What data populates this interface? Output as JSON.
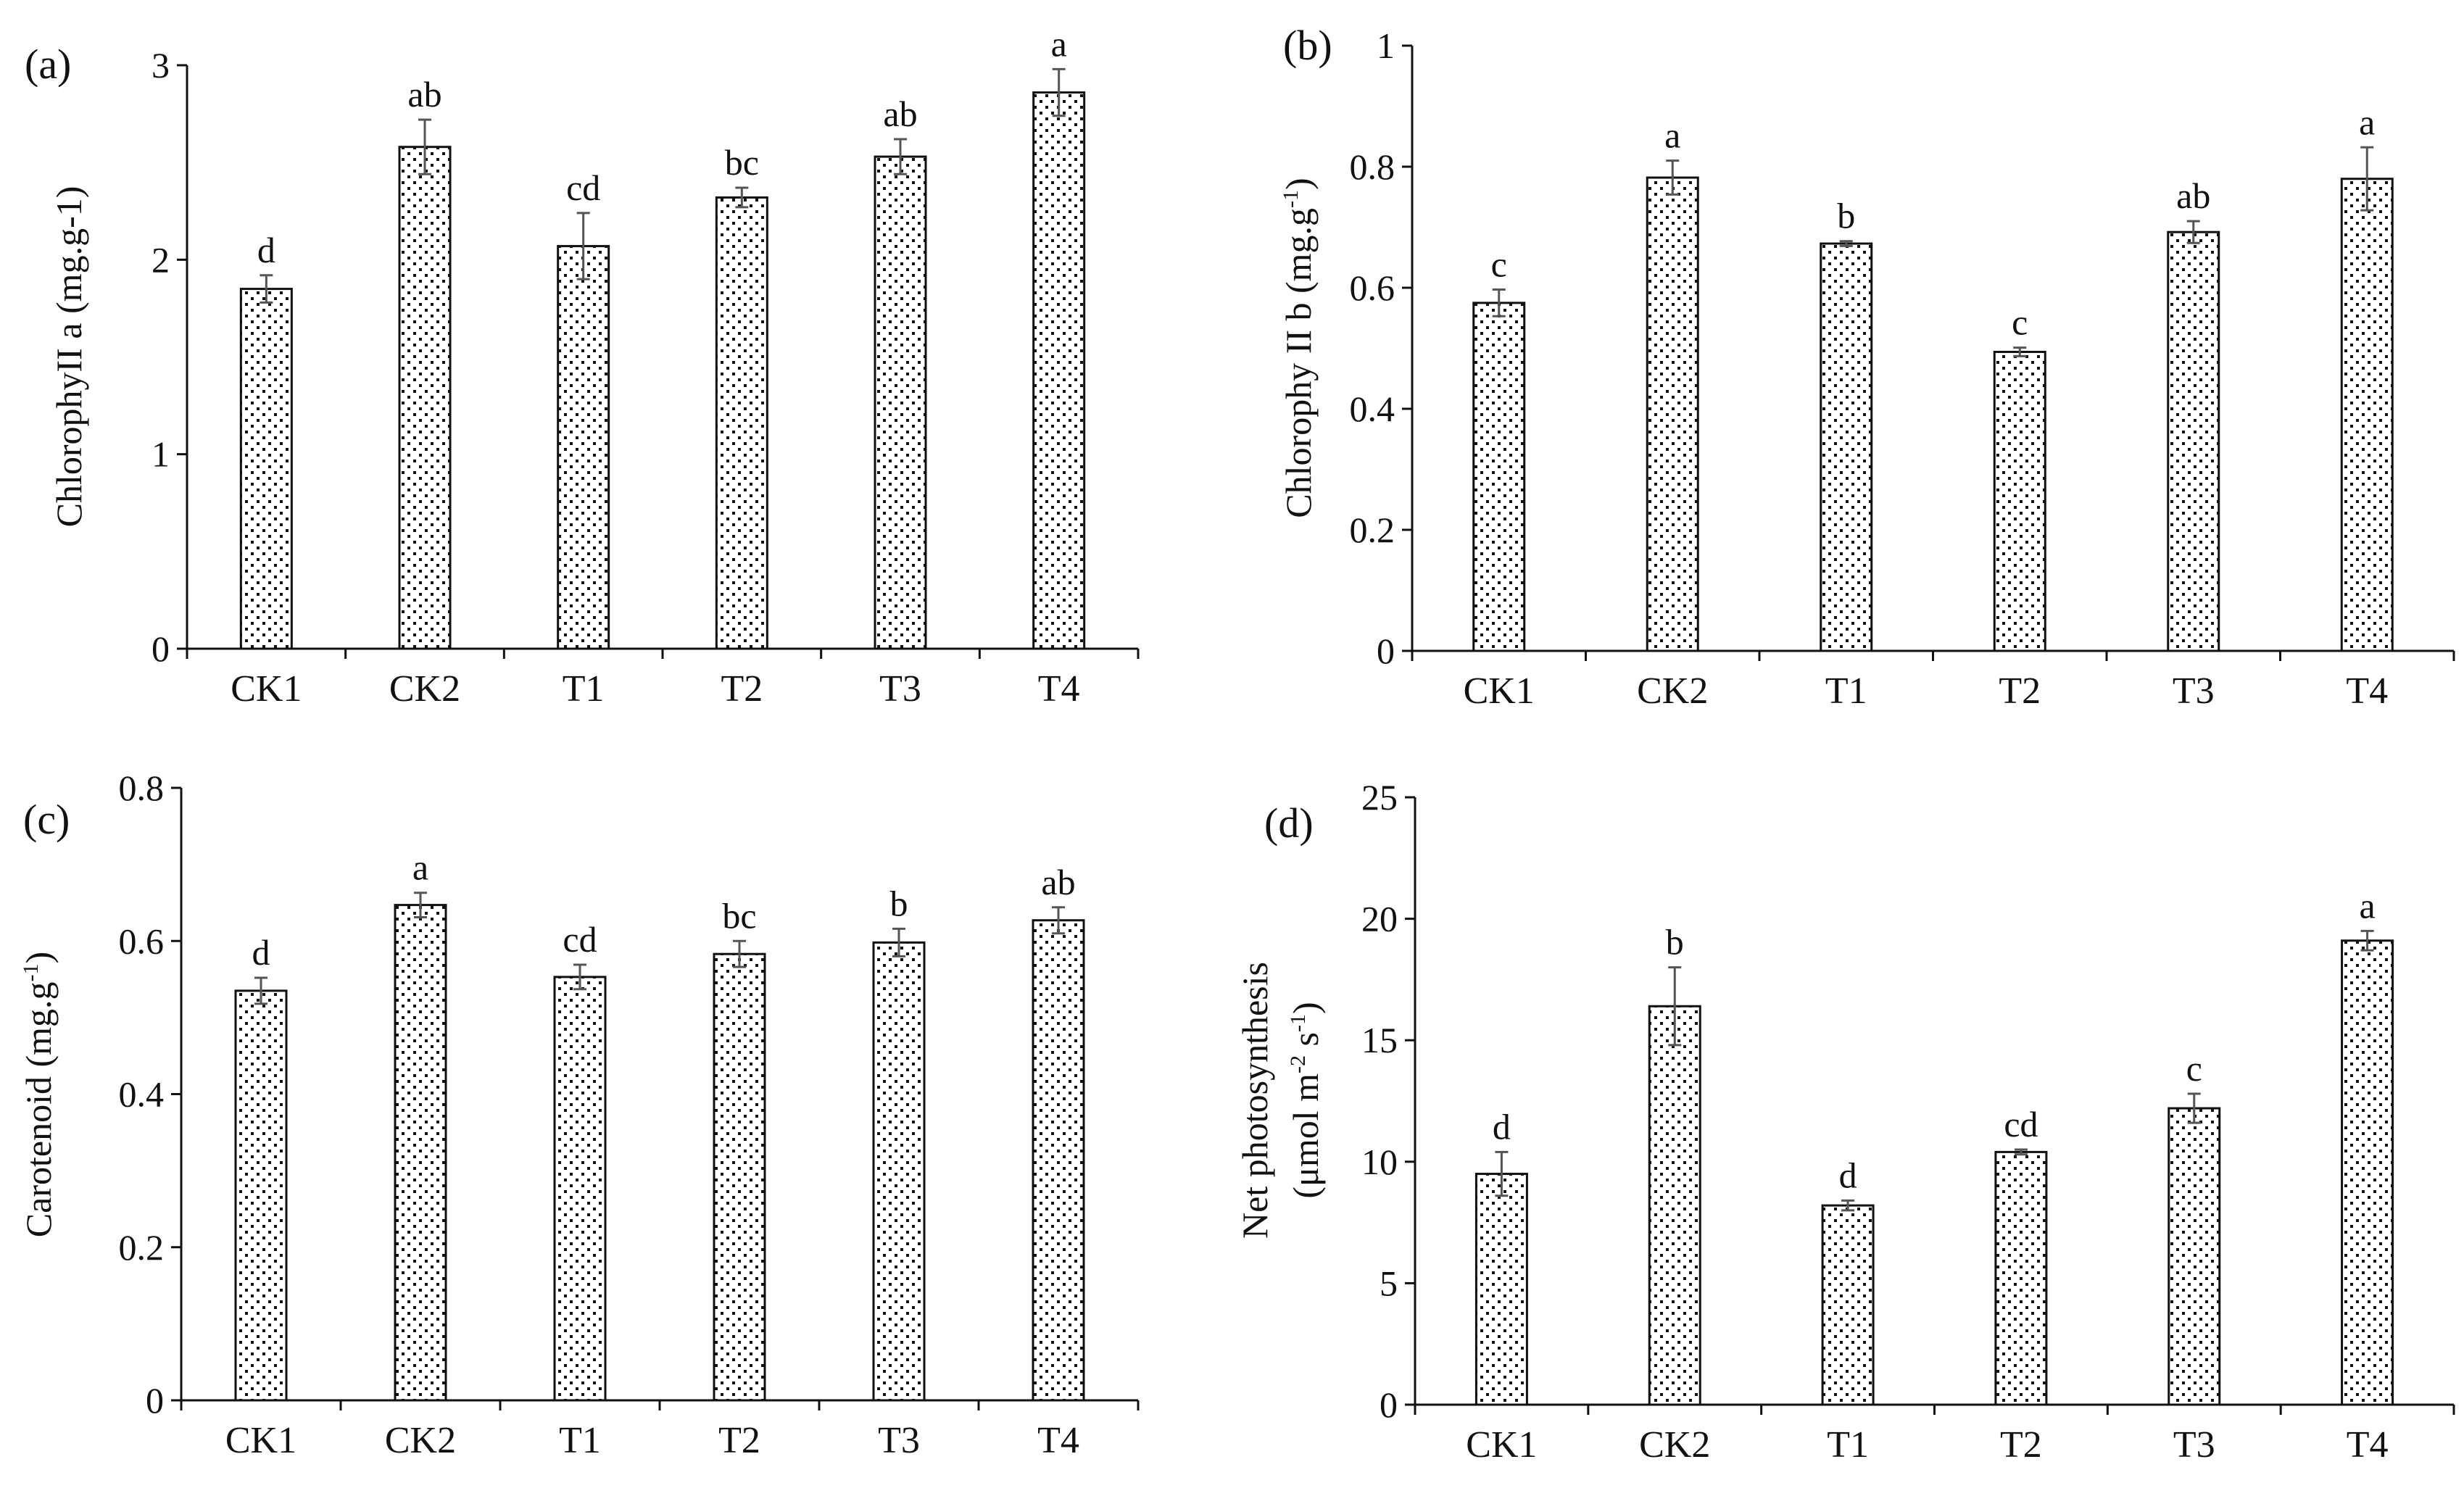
{
  "colors": {
    "bar_fill": "#ffffff",
    "bar_stroke": "#111111",
    "dot": "#111111",
    "axis": "#111111",
    "error_bar": "#555555"
  },
  "chart_data": [
    {
      "panel": "(a)",
      "type": "bar",
      "title": "",
      "xlabel": "",
      "ylabel": "ChlorophyII a (mg.g-1)",
      "ylabel_parts": [
        "ChlorophyII a (mg.g-1)"
      ],
      "ylim": [
        0,
        3
      ],
      "yticks": [
        0,
        1,
        2,
        3
      ],
      "ytick_labels": [
        "0",
        "1",
        "2",
        "3"
      ],
      "categories": [
        "CK1",
        "CK2",
        "T1",
        "T2",
        "T3",
        "T4"
      ],
      "values": [
        1.85,
        2.58,
        2.07,
        2.32,
        2.53,
        2.86
      ],
      "errors": [
        0.07,
        0.14,
        0.17,
        0.05,
        0.09,
        0.12
      ],
      "significance": [
        "d",
        "ab",
        "cd",
        "bc",
        "ab",
        "a"
      ]
    },
    {
      "panel": "(b)",
      "type": "bar",
      "title": "",
      "xlabel": "",
      "ylabel": "Chlorophy II b (mg.g-1)",
      "ylabel_parts": [
        "Chlorophy II b (mg.g",
        "-1",
        ")"
      ],
      "ylim": [
        0,
        1
      ],
      "yticks": [
        0,
        0.2,
        0.4,
        0.6,
        0.8,
        1
      ],
      "ytick_labels": [
        "0",
        "0.2",
        "0.4",
        "0.6",
        "0.8",
        "1"
      ],
      "categories": [
        "CK1",
        "CK2",
        "T1",
        "T2",
        "T3",
        "T4"
      ],
      "values": [
        0.575,
        0.782,
        0.673,
        0.494,
        0.692,
        0.78
      ],
      "errors": [
        0.022,
        0.028,
        0.004,
        0.007,
        0.018,
        0.052
      ],
      "significance": [
        "c",
        "a",
        "b",
        "c",
        "ab",
        "a"
      ]
    },
    {
      "panel": "(c)",
      "type": "bar",
      "title": "",
      "xlabel": "",
      "ylabel": "Carotenoid (mg.g-1)",
      "ylabel_parts": [
        "Carotenoid (mg.g",
        "-1",
        ")"
      ],
      "ylim": [
        0,
        0.8
      ],
      "yticks": [
        0,
        0.2,
        0.4,
        0.6,
        0.8
      ],
      "ytick_labels": [
        "0",
        "0.2",
        "0.4",
        "0.6",
        "0.8"
      ],
      "categories": [
        "CK1",
        "CK2",
        "T1",
        "T2",
        "T3",
        "T4"
      ],
      "values": [
        0.535,
        0.647,
        0.553,
        0.583,
        0.598,
        0.627
      ],
      "errors": [
        0.017,
        0.016,
        0.016,
        0.017,
        0.018,
        0.017
      ],
      "significance": [
        "d",
        "a",
        "cd",
        "bc",
        "b",
        "ab"
      ]
    },
    {
      "panel": "(d)",
      "type": "bar",
      "title": "",
      "xlabel": "",
      "ylabel": "Net photosynthesis (μmol m-2 s-1)",
      "ylabel_parts": [
        "Net photosynthesis"
      ],
      "ylabel_line2_parts": [
        "(μmol m",
        "-2",
        " s",
        "-1",
        ")"
      ],
      "ylim": [
        0,
        25
      ],
      "yticks": [
        0,
        5,
        10,
        15,
        20,
        25
      ],
      "ytick_labels": [
        "0",
        "5",
        "10",
        "15",
        "20",
        "25"
      ],
      "categories": [
        "CK1",
        "CK2",
        "T1",
        "T2",
        "T3",
        "T4"
      ],
      "values": [
        9.5,
        16.4,
        8.2,
        10.4,
        12.2,
        19.1
      ],
      "errors": [
        0.9,
        1.6,
        0.2,
        0.1,
        0.6,
        0.4
      ],
      "significance": [
        "d",
        "b",
        "d",
        "cd",
        "c",
        "a"
      ]
    }
  ]
}
